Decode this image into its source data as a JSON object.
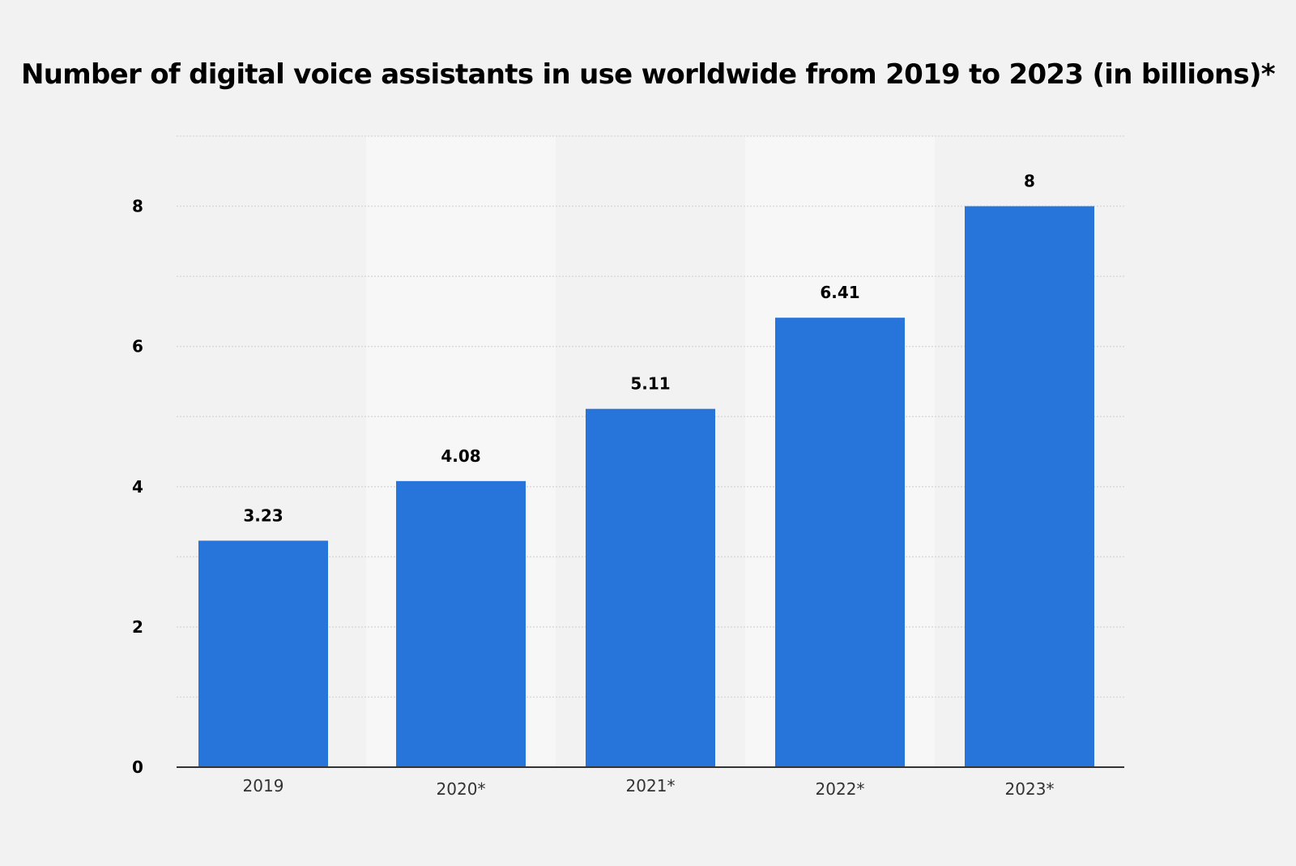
{
  "chart_data": {
    "type": "bar",
    "title": "Number of digital voice assistants in use worldwide from 2019 to 2023 (in billions)*",
    "xlabel": "",
    "ylabel": "",
    "categories": [
      "2019",
      "2020*",
      "2021*",
      "2022*",
      "2023*"
    ],
    "values": [
      3.23,
      4.08,
      5.11,
      6.41,
      8
    ],
    "value_labels": [
      "3.23",
      "4.08",
      "5.11",
      "6.41",
      "8"
    ],
    "ylim": [
      0,
      9
    ],
    "yticks": [
      0,
      2,
      4,
      6,
      8
    ],
    "ytick_labels": [
      "0",
      "2",
      "4",
      "6",
      "8"
    ],
    "grid": true,
    "bar_color": "#2775db",
    "background_color": "#f2f2f2",
    "alternate_band_color": "#f7f7f7"
  }
}
